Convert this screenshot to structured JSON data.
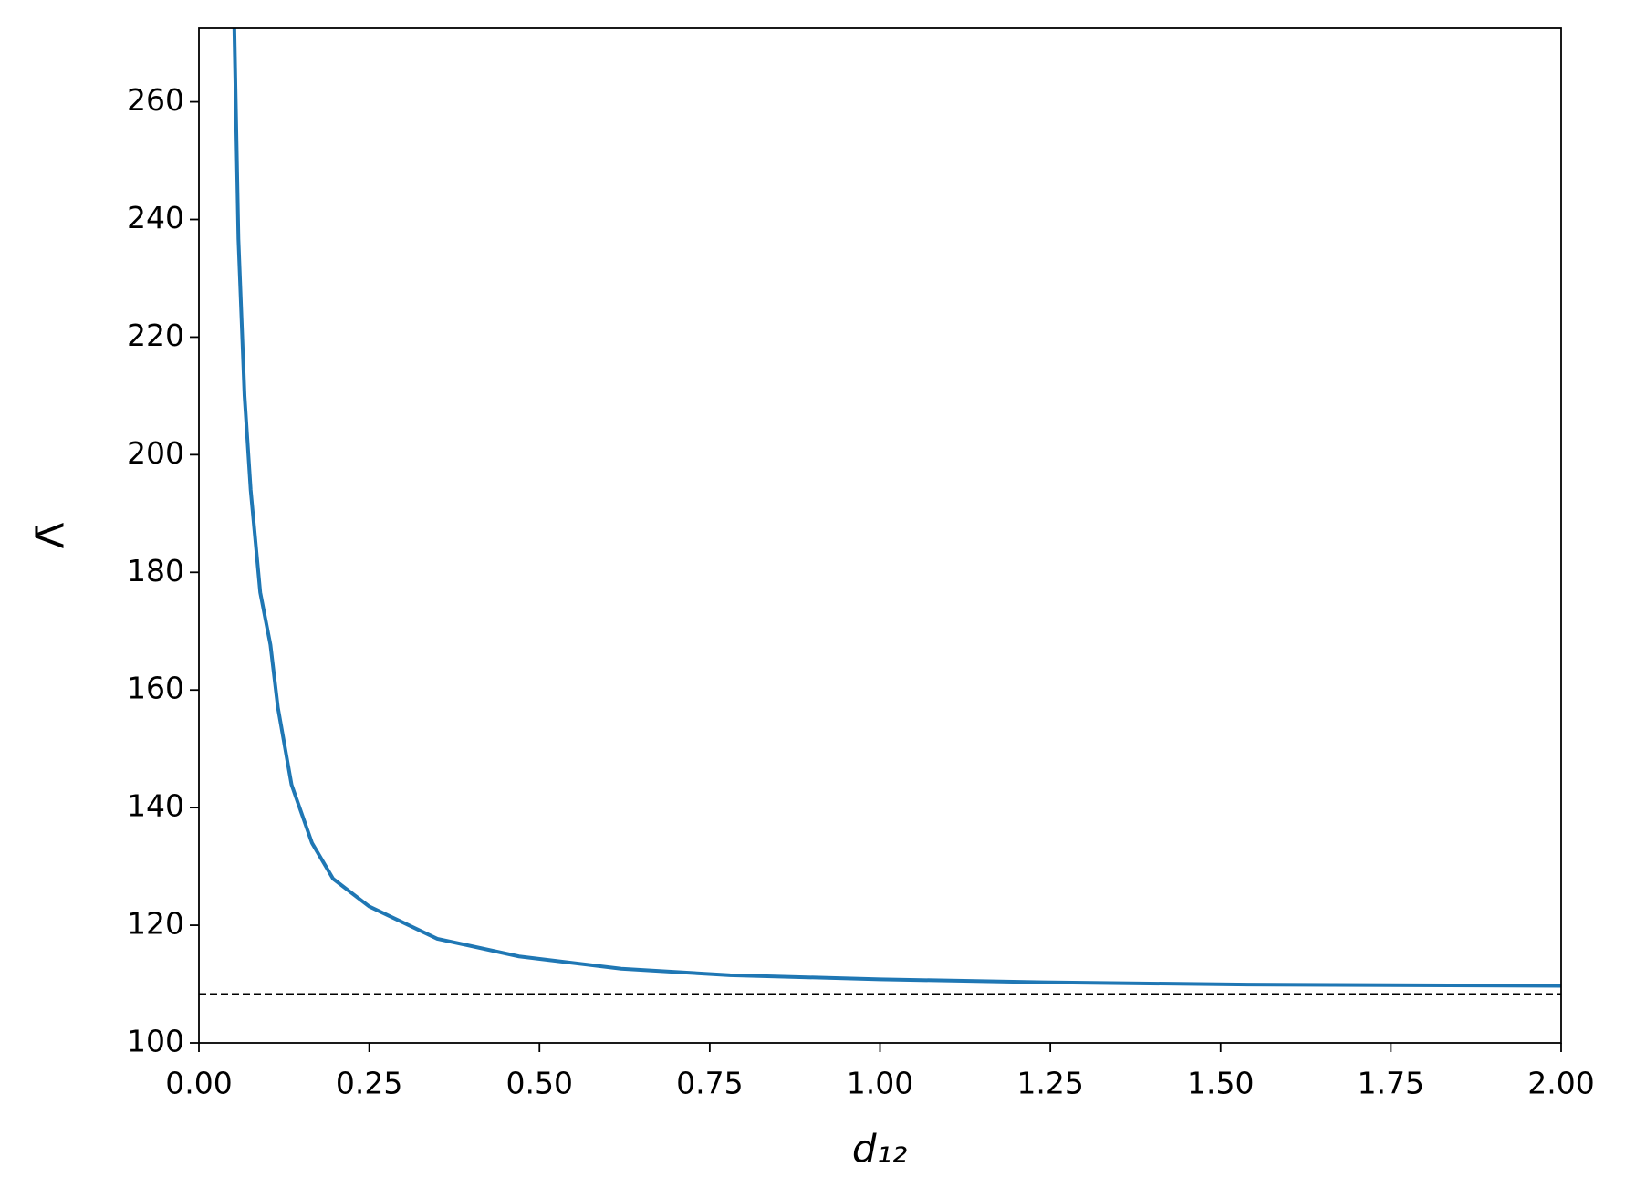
{
  "chart_data": {
    "type": "line",
    "xlabel": "d₁₂",
    "ylabel": "Λ̄",
    "x": [
      0.052,
      0.058,
      0.067,
      0.076,
      0.09,
      0.105,
      0.116,
      0.136,
      0.166,
      0.197,
      0.25,
      0.35,
      0.47,
      0.62,
      0.78,
      1.0,
      1.24,
      1.54,
      2.0
    ],
    "series": [
      {
        "color": "#1f77b4",
        "values": [
          272.5,
          236.7,
          210,
          194,
          176.6,
          167.7,
          157,
          143.9,
          134,
          127.9,
          123.2,
          117.7,
          114.7,
          112.6,
          111.5,
          110.8,
          110.3,
          109.9,
          109.7
        ]
      }
    ],
    "hline": 108.3,
    "hline_color": "#000000",
    "xlim": [
      0,
      2
    ],
    "ylim": [
      100,
      272.5
    ],
    "xticks": [
      {
        "value": 0,
        "label": "0.00"
      },
      {
        "value": 0.25,
        "label": "0.25"
      },
      {
        "value": 0.5,
        "label": "0.50"
      },
      {
        "value": 0.75,
        "label": "0.75"
      },
      {
        "value": 1,
        "label": "1.00"
      },
      {
        "value": 1.25,
        "label": "1.25"
      },
      {
        "value": 1.5,
        "label": "1.50"
      },
      {
        "value": 1.75,
        "label": "1.75"
      },
      {
        "value": 2,
        "label": "2.00"
      }
    ],
    "yticks": [
      100,
      120,
      140,
      160,
      180,
      200,
      220,
      240,
      260
    ],
    "grid": false
  }
}
